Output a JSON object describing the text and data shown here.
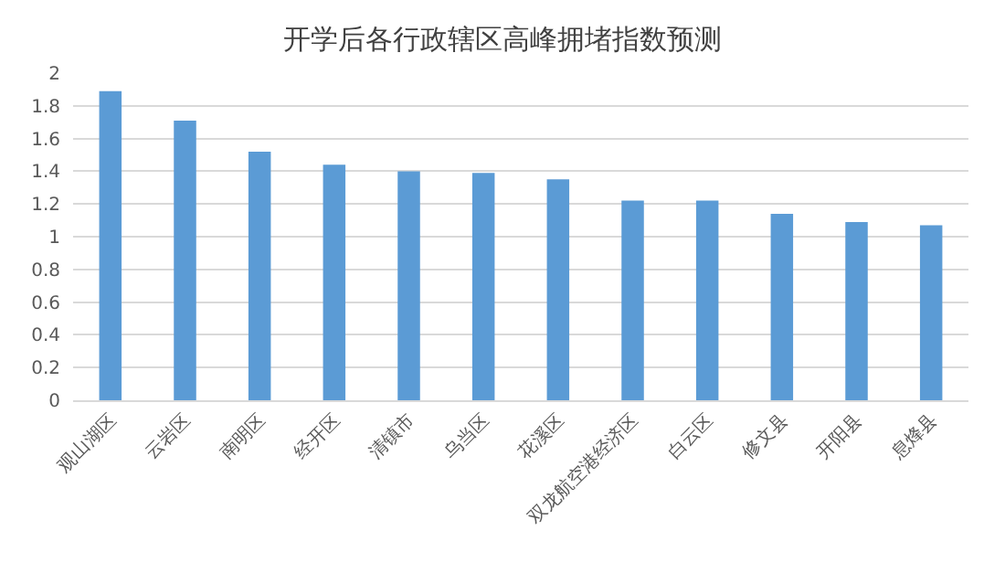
{
  "chart_data": {
    "type": "bar",
    "title": "开学后各行政辖区高峰拥堵指数预测",
    "categories": [
      "观山湖区",
      "云岩区",
      "南明区",
      "经开区",
      "清镇市",
      "乌当区",
      "花溪区",
      "双龙航空港经济区",
      "白云区",
      "修文县",
      "开阳县",
      "息烽县"
    ],
    "values": [
      1.89,
      1.71,
      1.52,
      1.44,
      1.4,
      1.39,
      1.35,
      1.22,
      1.22,
      1.14,
      1.09,
      1.07
    ],
    "color": "#5b9bd5",
    "ylim": [
      0,
      2
    ],
    "yticks": [
      0,
      0.2,
      0.4,
      0.6,
      0.8,
      1,
      1.2,
      1.4,
      1.6,
      1.8,
      2
    ],
    "grid": "y"
  }
}
